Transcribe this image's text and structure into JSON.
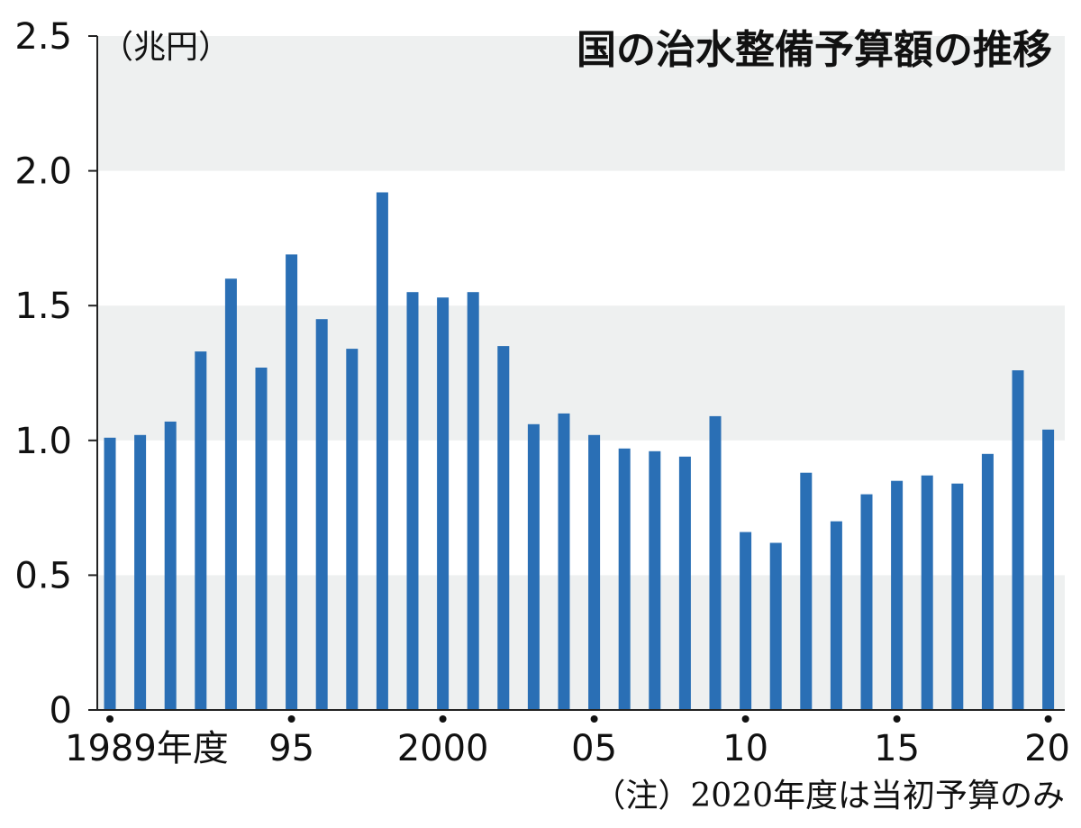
{
  "chart_data": {
    "type": "bar",
    "title": "国の治水整備予算額の推移",
    "unit_label": "（兆円）",
    "note": "（注）2020年度は当初予算のみ",
    "ylim": [
      0,
      2.5
    ],
    "y_ticks": [
      "0",
      "0.5",
      "1.0",
      "1.5",
      "2.0",
      "2.5"
    ],
    "x_tick_labels": [
      {
        "index": 0,
        "label": "1989年度"
      },
      {
        "index": 6,
        "label": "95"
      },
      {
        "index": 11,
        "label": "2000"
      },
      {
        "index": 16,
        "label": "05"
      },
      {
        "index": 21,
        "label": "10"
      },
      {
        "index": 26,
        "label": "15"
      },
      {
        "index": 31,
        "label": "20"
      }
    ],
    "categories": [
      "1989",
      "1990",
      "1991",
      "1992",
      "1993",
      "1994",
      "1995",
      "1996",
      "1997",
      "1998",
      "1999",
      "2000",
      "2001",
      "2002",
      "2003",
      "2004",
      "2005",
      "2006",
      "2007",
      "2008",
      "2009",
      "2010",
      "2011",
      "2012",
      "2013",
      "2014",
      "2015",
      "2016",
      "2017",
      "2018",
      "2019",
      "2020"
    ],
    "values": [
      1.01,
      1.02,
      1.07,
      1.33,
      1.6,
      1.27,
      1.69,
      1.45,
      1.34,
      1.92,
      1.55,
      1.53,
      1.55,
      1.35,
      1.06,
      1.1,
      1.02,
      0.97,
      0.96,
      0.94,
      1.09,
      0.66,
      0.62,
      0.88,
      0.7,
      0.8,
      0.85,
      0.87,
      0.84,
      0.95,
      1.26,
      1.04
    ],
    "grid": "alternating bands",
    "colors": {
      "bar": "#2a6fb5",
      "band": "#eef0f0",
      "axis": "#222222"
    }
  }
}
